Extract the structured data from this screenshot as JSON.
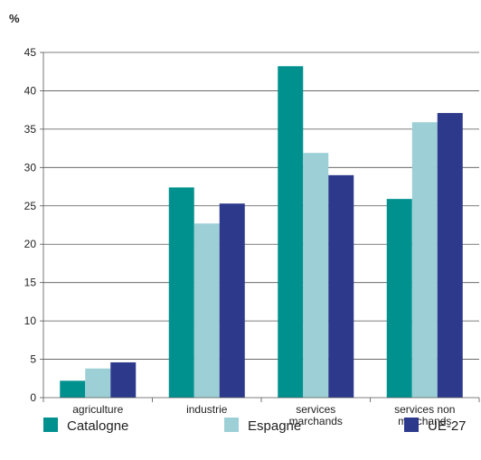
{
  "chart_data": {
    "type": "bar",
    "ylabel": "%",
    "ylim": [
      0,
      45
    ],
    "yticks": [
      0,
      5,
      10,
      15,
      20,
      25,
      30,
      35,
      40,
      45
    ],
    "grid": true,
    "legend_position": "bottom",
    "categories": [
      [
        "agriculture"
      ],
      [
        "industrie"
      ],
      [
        "services",
        "marchands"
      ],
      [
        "services non",
        "marchands"
      ]
    ],
    "series": [
      {
        "name": "Catalogne",
        "color": "#00918f",
        "values": [
          2.2,
          27.4,
          43.2,
          25.9
        ]
      },
      {
        "name": "Espagne",
        "color": "#9dd0d6",
        "values": [
          3.8,
          22.7,
          31.9,
          35.9
        ]
      },
      {
        "name": "UE-27",
        "color": "#2d3a8c",
        "values": [
          4.6,
          25.3,
          29.0,
          37.1
        ]
      }
    ]
  }
}
